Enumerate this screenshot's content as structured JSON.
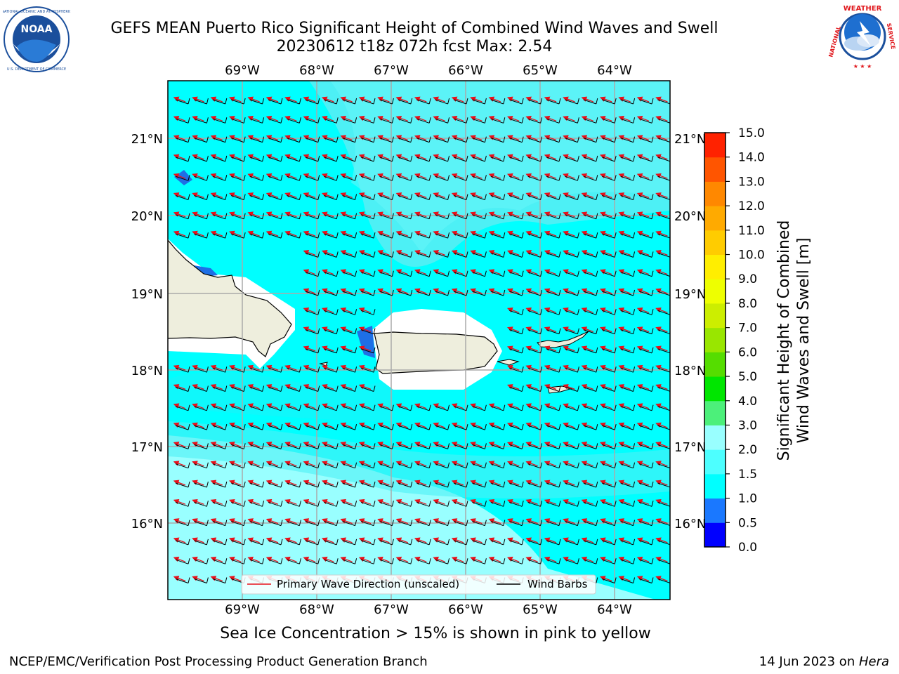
{
  "header": {
    "title_line1": "GEFS MEAN Puerto Rico Significant Height of Combined Wind Waves and Swell",
    "title_line2": "20230612 t18z 072h fcst   Max: 2.54"
  },
  "logos": {
    "noaa": {
      "text": "NOAA",
      "ring_text": "NATIONAL OCEANIC AND ATMOSPHERIC ADMINISTRATION · U.S. DEPARTMENT OF COMMERCE",
      "color": "#1b4f9c"
    },
    "nws": {
      "ring_text": "NATIONAL WEATHER SERVICE",
      "color": "#e0161b"
    }
  },
  "map": {
    "lon_labels": [
      "69°W",
      "68°W",
      "67°W",
      "66°W",
      "65°W",
      "64°W"
    ],
    "lat_labels": [
      "21°N",
      "20°N",
      "19°N",
      "18°N",
      "17°N",
      "16°N"
    ],
    "legend": {
      "primary_wave": "Primary Wave Direction (unscaled)",
      "wind_barbs": "Wind Barbs"
    },
    "colors": {
      "sea_main": "#00ffff",
      "sea_light": "#99ffff",
      "sea_mid": "#4df0f5",
      "sea_dark": "#1e8fff",
      "land": "#eeeedd",
      "wave_arrow": "#e8101a"
    }
  },
  "colorbar": {
    "label_line1": "Significant Height of Combined",
    "label_line2": "Wind Waves and Swell [m]",
    "ticks": [
      "0.0",
      "0.5",
      "1.0",
      "1.5",
      "2.0",
      "3.0",
      "4.0",
      "5.0",
      "6.0",
      "7.0",
      "8.0",
      "9.0",
      "10.0",
      "11.0",
      "12.0",
      "13.0",
      "14.0",
      "15.0"
    ],
    "colors": [
      "#0000ff",
      "#1a78ff",
      "#00ffff",
      "#4dffff",
      "#99ffff",
      "#4cf07a",
      "#00e600",
      "#55dd00",
      "#99e600",
      "#ccee00",
      "#eeff00",
      "#ffee00",
      "#ffcc00",
      "#ffaa00",
      "#ff8800",
      "#ff5500",
      "#ff2200",
      "#ff0000"
    ]
  },
  "note": "Sea Ice Concentration > 15% is shown in pink to yellow",
  "footer": {
    "left": "NCEP/EMC/Verification Post Processing Product Generation Branch",
    "right_date": "14 Jun 2023 on ",
    "right_host": "Hera"
  }
}
